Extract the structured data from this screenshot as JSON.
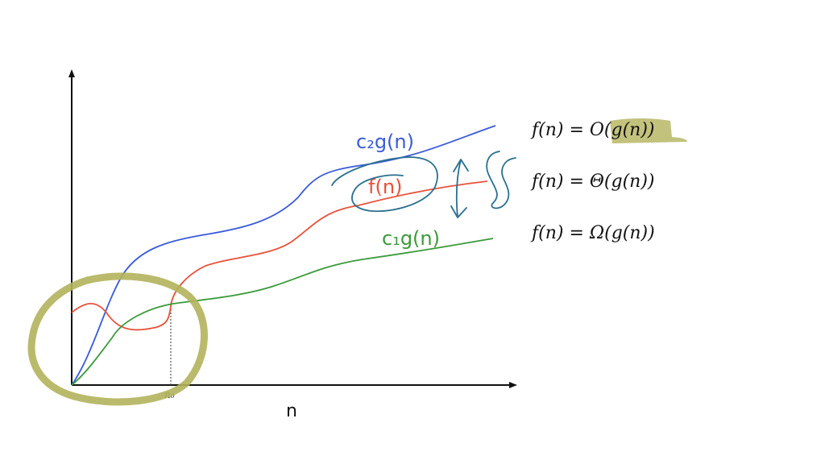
{
  "graph": {
    "x_axis_label": "n",
    "n0_label": "n₀",
    "curves": [
      {
        "key": "upper",
        "label": "c₂g(n)",
        "color": "#3a5bd9"
      },
      {
        "key": "middle",
        "label": "f(n)",
        "color": "#e8513a"
      },
      {
        "key": "lower",
        "label": "c₁g(n)",
        "color": "#3a9a3a"
      }
    ]
  },
  "notation": {
    "big_o": "f(n) = O(g(n))",
    "big_theta": "f(n) = Θ(g(n))",
    "big_omega": "f(n) = Ω(g(n))"
  },
  "annotations": {
    "highlight_color": "#b3b35c",
    "ink_color": "#2a6f8f"
  }
}
